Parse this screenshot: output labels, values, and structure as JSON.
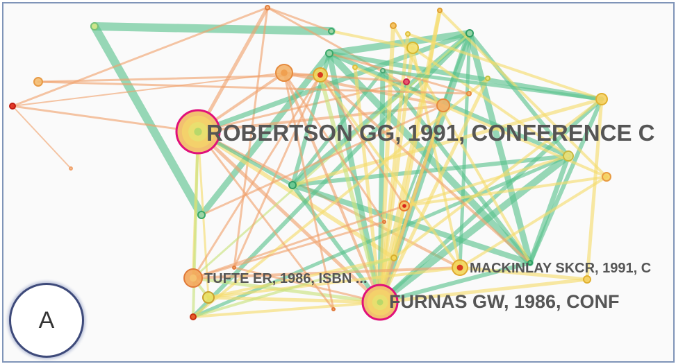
{
  "labels": {
    "robertson": "ROBERTSON GG,  1991,  CONFERENCE C",
    "tufte": "TUFTE ER,  1986,  ISBN ...",
    "mackinlay": "MACKINLAY SKCR,  1991,  C",
    "furnas": "FURNAS GW,  1986,  CONF"
  },
  "panel": {
    "letter": "A"
  },
  "colors": {
    "orange": "#f0a26c",
    "green": "#58c28c",
    "yellow": "#f5dc6a",
    "lime": "#c8e27a",
    "hub_ring": "#e0107a"
  }
}
